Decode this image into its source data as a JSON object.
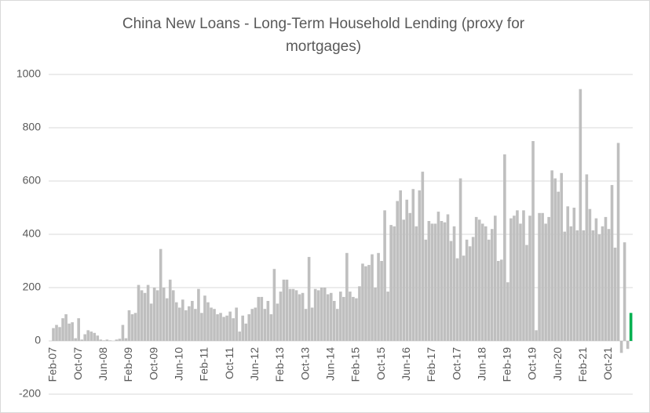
{
  "chart_data": {
    "type": "bar",
    "title": "China New Loans - Long-Term Household Lending (proxy for mortgages)",
    "categories": [
      "Feb-07",
      null,
      null,
      null,
      null,
      null,
      null,
      null,
      "Oct-07",
      null,
      null,
      null,
      null,
      null,
      null,
      null,
      "Jun-08",
      null,
      null,
      null,
      null,
      null,
      null,
      null,
      "Feb-09",
      null,
      null,
      null,
      null,
      null,
      null,
      null,
      "Oct-09",
      null,
      null,
      null,
      null,
      null,
      null,
      null,
      "Jun-10",
      null,
      null,
      null,
      null,
      null,
      null,
      null,
      "Feb-11",
      null,
      null,
      null,
      null,
      null,
      null,
      null,
      "Oct-11",
      null,
      null,
      null,
      null,
      null,
      null,
      null,
      "Jun-12",
      null,
      null,
      null,
      null,
      null,
      null,
      null,
      "Feb-13",
      null,
      null,
      null,
      null,
      null,
      null,
      null,
      "Oct-13",
      null,
      null,
      null,
      null,
      null,
      null,
      null,
      "Jun-14",
      null,
      null,
      null,
      null,
      null,
      null,
      null,
      "Feb-15",
      null,
      null,
      null,
      null,
      null,
      null,
      null,
      "Oct-15",
      null,
      null,
      null,
      null,
      null,
      null,
      null,
      "Jun-16",
      null,
      null,
      null,
      null,
      null,
      null,
      null,
      "Feb-17",
      null,
      null,
      null,
      null,
      null,
      null,
      null,
      "Oct-17",
      null,
      null,
      null,
      null,
      null,
      null,
      null,
      "Jun-18",
      null,
      null,
      null,
      null,
      null,
      null,
      null,
      "Feb-19",
      null,
      null,
      null,
      null,
      null,
      null,
      null,
      "Oct-19",
      null,
      null,
      null,
      null,
      null,
      null,
      null,
      "Jun-20",
      null,
      null,
      null,
      null,
      null,
      null,
      null,
      "Feb-21",
      null,
      null,
      null,
      null,
      null,
      null,
      null,
      "Oct-21",
      null,
      null,
      null,
      null,
      null,
      null,
      null
    ],
    "values": [
      48,
      60,
      52,
      85,
      100,
      65,
      70,
      10,
      85,
      5,
      25,
      40,
      35,
      30,
      20,
      5,
      2,
      5,
      2,
      0,
      5,
      8,
      60,
      10,
      115,
      100,
      105,
      210,
      190,
      180,
      210,
      140,
      200,
      190,
      345,
      200,
      160,
      230,
      190,
      145,
      125,
      155,
      115,
      130,
      150,
      120,
      195,
      105,
      170,
      145,
      125,
      120,
      100,
      105,
      90,
      95,
      110,
      85,
      125,
      35,
      95,
      65,
      100,
      120,
      125,
      165,
      165,
      120,
      150,
      100,
      270,
      140,
      185,
      230,
      230,
      195,
      195,
      190,
      175,
      180,
      120,
      315,
      125,
      195,
      190,
      200,
      200,
      175,
      180,
      150,
      120,
      185,
      165,
      330,
      185,
      165,
      160,
      205,
      290,
      280,
      285,
      325,
      200,
      330,
      300,
      490,
      185,
      435,
      430,
      525,
      565,
      455,
      530,
      480,
      570,
      430,
      565,
      635,
      380,
      450,
      440,
      440,
      485,
      450,
      445,
      475,
      375,
      430,
      310,
      610,
      320,
      380,
      355,
      390,
      465,
      455,
      440,
      430,
      380,
      420,
      470,
      300,
      305,
      700,
      220,
      460,
      470,
      490,
      440,
      490,
      360,
      470,
      750,
      40,
      480,
      480,
      440,
      465,
      640,
      610,
      560,
      630,
      410,
      505,
      430,
      500,
      415,
      945,
      415,
      625,
      495,
      415,
      460,
      400,
      430,
      465,
      420,
      585,
      350,
      743,
      -45,
      370,
      -30,
      105
    ],
    "color": "#bfbfbf",
    "last_color": "#00b050",
    "ylim": [
      -200,
      1000
    ],
    "yticks": [
      -200,
      0,
      200,
      400,
      600,
      800,
      1000
    ],
    "grid": true
  }
}
